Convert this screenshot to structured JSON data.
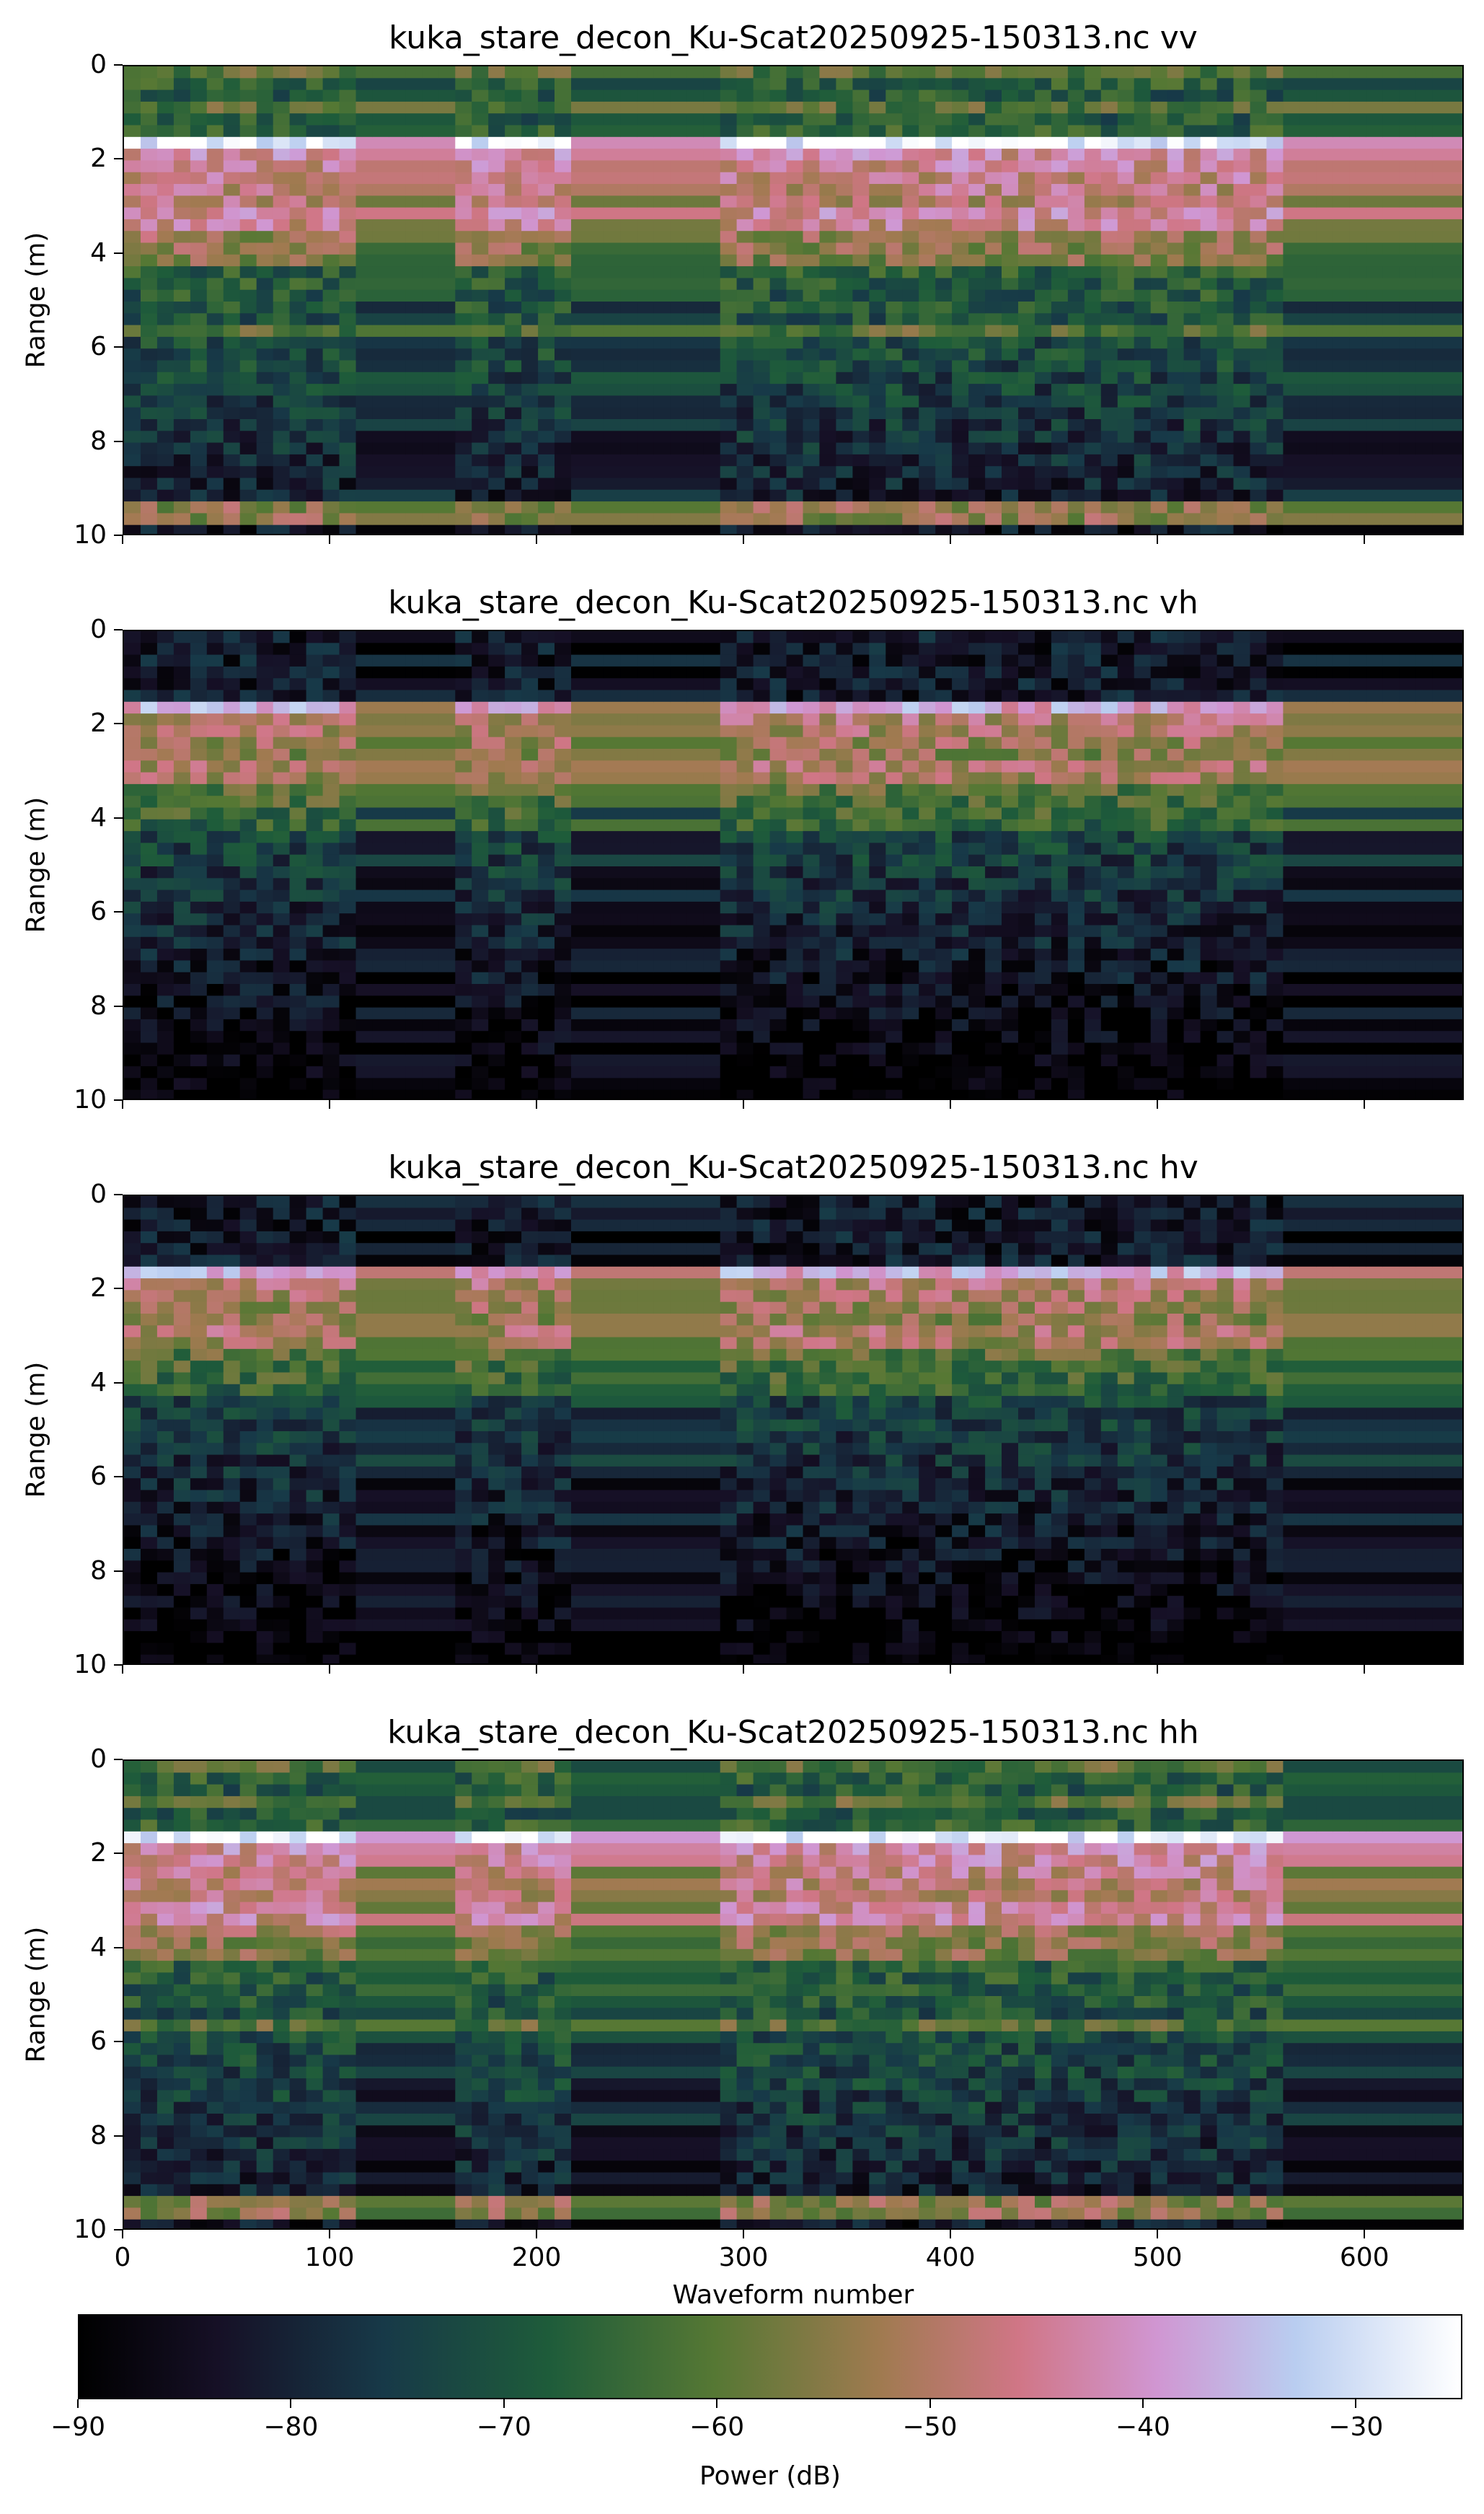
{
  "chart_data": {
    "type": "heatmap",
    "colormap": "cubehelix",
    "shared_xlabel": "Waveform number",
    "xlim": [
      0,
      648
    ],
    "xticks": [
      "0",
      "100",
      "200",
      "300",
      "400",
      "500",
      "600"
    ],
    "ylim": [
      0,
      10
    ],
    "yticks": [
      "0",
      "2",
      "4",
      "6",
      "8",
      "10"
    ],
    "ylabel": "Range (m)",
    "panels": [
      {
        "title": "kuka_stare_decon_Ku-Scat20250925-150313.nc vv",
        "polarization": "vv",
        "surface_range_m": 1.6,
        "second_return_m": 3.2,
        "bottom_return_m": 9.6
      },
      {
        "title": "kuka_stare_decon_Ku-Scat20250925-150313.nc vh",
        "polarization": "vh",
        "surface_range_m": 1.6,
        "second_return_m": 3.0,
        "bottom_return_m": 0
      },
      {
        "title": "kuka_stare_decon_Ku-Scat20250925-150313.nc hv",
        "polarization": "hv",
        "surface_range_m": 1.6,
        "second_return_m": 3.0,
        "bottom_return_m": 0
      },
      {
        "title": "kuka_stare_decon_Ku-Scat20250925-150313.nc hh",
        "polarization": "hh",
        "surface_range_m": 1.6,
        "second_return_m": 3.2,
        "bottom_return_m": 9.6
      }
    ],
    "stationary_segments": [
      [
        110,
        158
      ],
      [
        220,
        230
      ],
      [
        230,
        285
      ],
      [
        557,
        648
      ]
    ],
    "colorbar": {
      "label": "Power (dB)",
      "range": [
        -90,
        -25
      ],
      "ticks": [
        "−90",
        "−80",
        "−70",
        "−60",
        "−50",
        "−40",
        "−30"
      ],
      "tick_values": [
        -90,
        -80,
        -70,
        -60,
        -50,
        -40,
        -30
      ]
    }
  }
}
